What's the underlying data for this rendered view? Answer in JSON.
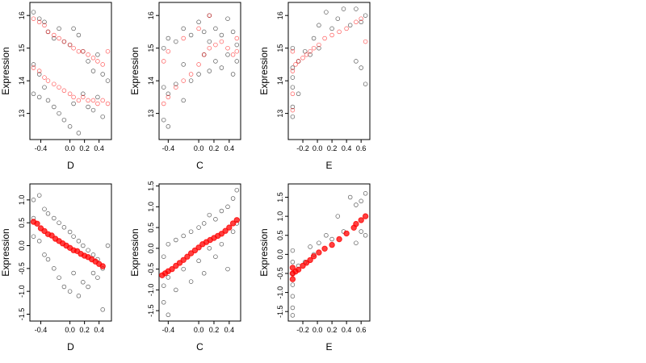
{
  "chart_data": [
    {
      "type": "scatter",
      "xlabel": "D",
      "ylabel": "Expression",
      "xlim": [
        -0.55,
        0.57
      ],
      "ylim": [
        12.2,
        16.4
      ],
      "xticks": [
        "-0.4",
        "0.0",
        "0.2",
        "0.4"
      ],
      "xtick_values": [
        -0.4,
        0.0,
        0.2,
        0.4
      ],
      "yticks": [
        "13",
        "14",
        "15",
        "16"
      ],
      "ytick_values": [
        13,
        14,
        15,
        16
      ],
      "grid": false,
      "series": [
        {
          "color": "#000000",
          "marker": "open-circle",
          "x": [
            -0.5,
            -0.5,
            -0.5,
            -0.42,
            -0.42,
            -0.42,
            -0.35,
            -0.35,
            -0.3,
            -0.3,
            -0.22,
            -0.22,
            -0.15,
            -0.15,
            -0.08,
            -0.08,
            0.0,
            0.0,
            0.05,
            0.05,
            0.12,
            0.12,
            0.18,
            0.18,
            0.25,
            0.25,
            0.32,
            0.32,
            0.38,
            0.38,
            0.45,
            0.45,
            0.52
          ],
          "y": [
            16.1,
            14.5,
            13.6,
            15.9,
            14.2,
            13.5,
            15.8,
            13.8,
            15.5,
            13.4,
            15.3,
            13.2,
            15.6,
            13.0,
            15.2,
            12.8,
            15.1,
            12.6,
            15.6,
            13.3,
            15.4,
            12.4,
            14.9,
            13.6,
            14.6,
            13.2,
            14.3,
            13.1,
            14.8,
            13.5,
            14.2,
            12.9,
            14.0
          ]
        },
        {
          "color": "#ff0000",
          "marker": "open-circle",
          "x": [
            -0.5,
            -0.5,
            -0.42,
            -0.42,
            -0.35,
            -0.35,
            -0.3,
            -0.3,
            -0.22,
            -0.22,
            -0.15,
            -0.15,
            -0.08,
            -0.08,
            0.0,
            0.0,
            0.05,
            0.05,
            0.12,
            0.12,
            0.18,
            0.18,
            0.25,
            0.25,
            0.32,
            0.32,
            0.38,
            0.38,
            0.45,
            0.45,
            0.52,
            0.52
          ],
          "y": [
            15.9,
            14.4,
            15.8,
            14.3,
            15.7,
            14.1,
            15.5,
            14.0,
            15.4,
            13.9,
            15.3,
            13.8,
            15.2,
            13.7,
            15.1,
            13.6,
            15.0,
            13.5,
            14.9,
            13.4,
            14.9,
            13.5,
            14.8,
            13.4,
            14.7,
            13.4,
            14.6,
            13.3,
            14.5,
            13.4,
            14.9,
            13.3
          ]
        }
      ]
    },
    {
      "type": "scatter",
      "xlabel": "C",
      "ylabel": "Expression",
      "xlim": [
        -0.52,
        0.55
      ],
      "ylim": [
        12.2,
        16.4
      ],
      "xticks": [
        "-0.4",
        "0.0",
        "0.2",
        "0.4"
      ],
      "xtick_values": [
        -0.4,
        0.0,
        0.2,
        0.4
      ],
      "yticks": [
        "13",
        "14",
        "15",
        "16"
      ],
      "ytick_values": [
        13,
        14,
        15,
        16
      ],
      "grid": false,
      "series": [
        {
          "color": "#000000",
          "marker": "open-circle",
          "x": [
            -0.46,
            -0.46,
            -0.46,
            -0.4,
            -0.4,
            -0.4,
            -0.3,
            -0.3,
            -0.2,
            -0.2,
            -0.2,
            -0.1,
            -0.1,
            0.0,
            0.0,
            0.07,
            0.07,
            0.14,
            0.14,
            0.14,
            0.22,
            0.22,
            0.3,
            0.3,
            0.38,
            0.38,
            0.45,
            0.45,
            0.5,
            0.5
          ],
          "y": [
            15.0,
            13.8,
            12.8,
            15.3,
            13.6,
            12.6,
            15.2,
            13.9,
            15.6,
            14.5,
            13.4,
            15.4,
            14.0,
            15.8,
            14.2,
            15.5,
            14.8,
            16.0,
            15.2,
            14.3,
            15.6,
            14.6,
            15.4,
            14.4,
            15.9,
            14.8,
            15.5,
            14.2,
            15.1,
            14.6
          ]
        },
        {
          "color": "#ff0000",
          "marker": "open-circle",
          "x": [
            -0.46,
            -0.46,
            -0.4,
            -0.4,
            -0.3,
            -0.2,
            -0.2,
            -0.1,
            0.0,
            0.0,
            0.07,
            0.14,
            0.14,
            0.22,
            0.3,
            0.38,
            0.45,
            0.5,
            0.5
          ],
          "y": [
            13.3,
            14.6,
            13.5,
            14.9,
            13.8,
            14.0,
            15.3,
            14.2,
            14.5,
            15.6,
            14.8,
            15.0,
            16.0,
            15.1,
            15.2,
            15.0,
            14.8,
            14.9,
            15.3
          ]
        }
      ]
    },
    {
      "type": "scatter",
      "xlabel": "E",
      "ylabel": "Expression",
      "xlim": [
        -0.4,
        0.72
      ],
      "ylim": [
        12.2,
        16.4
      ],
      "xticks": [
        "-0.2",
        "0.0",
        "0.2",
        "0.4",
        "0.6"
      ],
      "xtick_values": [
        -0.2,
        0.0,
        0.2,
        0.4,
        0.6
      ],
      "yticks": [
        "13",
        "14",
        "15",
        "16"
      ],
      "ytick_values": [
        13,
        14,
        15,
        16
      ],
      "grid": false,
      "series": [
        {
          "color": "#000000",
          "marker": "open-circle",
          "x": [
            -0.34,
            -0.34,
            -0.34,
            -0.34,
            -0.34,
            -0.34,
            -0.26,
            -0.26,
            -0.17,
            -0.1,
            -0.05,
            0.02,
            0.02,
            0.12,
            0.2,
            0.28,
            0.36,
            0.45,
            0.53,
            0.53,
            0.6,
            0.6,
            0.66,
            0.66
          ],
          "y": [
            15.0,
            14.4,
            13.8,
            13.2,
            12.9,
            14.1,
            14.6,
            13.6,
            14.9,
            14.8,
            15.3,
            15.7,
            15.0,
            16.1,
            15.6,
            15.9,
            16.2,
            15.7,
            16.2,
            14.6,
            15.8,
            14.4,
            16.0,
            13.9
          ]
        },
        {
          "color": "#ff0000",
          "marker": "open-circle",
          "x": [
            -0.34,
            -0.34,
            -0.34,
            -0.34,
            -0.3,
            -0.26,
            -0.2,
            -0.15,
            -0.1,
            -0.05,
            0.02,
            0.1,
            0.2,
            0.3,
            0.4,
            0.53,
            0.6,
            0.66
          ],
          "y": [
            14.9,
            14.3,
            13.6,
            13.1,
            14.5,
            14.6,
            14.7,
            14.8,
            14.9,
            15.0,
            15.1,
            15.3,
            15.4,
            15.5,
            15.6,
            15.8,
            15.9,
            15.2
          ]
        }
      ]
    },
    {
      "type": "scatter",
      "xlabel": "D",
      "ylabel": "Expression",
      "xlim": [
        -0.55,
        0.57
      ],
      "ylim": [
        -1.65,
        1.35
      ],
      "xticks": [
        "-0.4",
        "0.0",
        "0.2",
        "0.4"
      ],
      "xtick_values": [
        -0.4,
        0.0,
        0.2,
        0.4
      ],
      "yticks": [
        "-1.5",
        "-1.0",
        "-0.5",
        "0.0",
        "0.5",
        "1.0"
      ],
      "ytick_values": [
        -1.5,
        -1.0,
        -0.5,
        0.0,
        0.5,
        1.0
      ],
      "grid": false,
      "series": [
        {
          "color": "#000000",
          "marker": "open-circle",
          "x": [
            -0.5,
            -0.5,
            -0.5,
            -0.42,
            -0.42,
            -0.35,
            -0.35,
            -0.3,
            -0.3,
            -0.22,
            -0.22,
            -0.15,
            -0.15,
            -0.08,
            -0.08,
            0.0,
            0.0,
            0.05,
            0.05,
            0.12,
            0.12,
            0.18,
            0.18,
            0.25,
            0.25,
            0.32,
            0.32,
            0.38,
            0.38,
            0.45,
            0.45,
            0.52
          ],
          "y": [
            1.0,
            0.6,
            0.2,
            1.1,
            0.1,
            0.8,
            -0.2,
            0.7,
            -0.3,
            0.6,
            -0.5,
            0.5,
            -0.7,
            0.4,
            -0.9,
            0.3,
            -1.0,
            0.2,
            -0.6,
            0.1,
            -1.1,
            0.0,
            -0.8,
            -0.1,
            -0.9,
            -0.2,
            -0.6,
            -0.3,
            -0.7,
            -1.4,
            -0.5,
            0.0
          ]
        },
        {
          "color": "#ff0000",
          "marker": "filled-circle",
          "x": [
            -0.5,
            -0.45,
            -0.4,
            -0.35,
            -0.3,
            -0.25,
            -0.2,
            -0.15,
            -0.1,
            -0.05,
            0.0,
            0.05,
            0.1,
            0.15,
            0.2,
            0.25,
            0.3,
            0.35,
            0.4,
            0.45
          ],
          "y": [
            0.52,
            0.48,
            0.38,
            0.32,
            0.25,
            0.22,
            0.15,
            0.1,
            0.05,
            0.0,
            -0.05,
            -0.1,
            -0.12,
            -0.18,
            -0.22,
            -0.25,
            -0.3,
            -0.35,
            -0.4,
            -0.45
          ]
        }
      ]
    },
    {
      "type": "scatter",
      "xlabel": "C",
      "ylabel": "Expression",
      "xlim": [
        -0.52,
        0.55
      ],
      "ylim": [
        -1.75,
        1.55
      ],
      "xticks": [
        "-0.4",
        "0.0",
        "0.2",
        "0.4"
      ],
      "xtick_values": [
        -0.4,
        0.0,
        0.2,
        0.4
      ],
      "yticks": [
        "-1.5",
        "-1.0",
        "-0.5",
        "0.0",
        "0.5",
        "1.0",
        "1.5"
      ],
      "ytick_values": [
        -1.5,
        -1.0,
        -0.5,
        0.0,
        0.5,
        1.0,
        1.5
      ],
      "grid": false,
      "series": [
        {
          "color": "#000000",
          "marker": "open-circle",
          "x": [
            -0.46,
            -0.46,
            -0.46,
            -0.4,
            -0.4,
            -0.4,
            -0.3,
            -0.3,
            -0.2,
            -0.2,
            -0.1,
            -0.1,
            0.0,
            0.0,
            0.07,
            0.07,
            0.14,
            0.14,
            0.22,
            0.22,
            0.3,
            0.3,
            0.38,
            0.38,
            0.45,
            0.45,
            0.5,
            0.5
          ],
          "y": [
            -0.2,
            -0.9,
            -1.3,
            0.1,
            -0.7,
            -1.6,
            0.2,
            -1.0,
            0.3,
            -0.5,
            0.4,
            -0.8,
            0.5,
            -0.3,
            0.6,
            -0.6,
            0.8,
            0.0,
            0.7,
            -0.2,
            0.9,
            0.1,
            1.0,
            -0.5,
            1.2,
            0.4,
            1.4,
            0.6
          ]
        },
        {
          "color": "#ff0000",
          "marker": "filled-circle",
          "x": [
            -0.48,
            -0.44,
            -0.4,
            -0.35,
            -0.3,
            -0.25,
            -0.2,
            -0.15,
            -0.1,
            -0.05,
            0.0,
            0.05,
            0.1,
            0.15,
            0.2,
            0.25,
            0.3,
            0.35,
            0.4,
            0.45,
            0.5
          ],
          "y": [
            -0.65,
            -0.6,
            -0.55,
            -0.5,
            -0.42,
            -0.35,
            -0.28,
            -0.2,
            -0.12,
            -0.05,
            0.02,
            0.1,
            0.15,
            0.2,
            0.25,
            0.3,
            0.35,
            0.42,
            0.5,
            0.6,
            0.68
          ]
        }
      ]
    },
    {
      "type": "scatter",
      "xlabel": "E",
      "ylabel": "Expression",
      "xlim": [
        -0.4,
        0.72
      ],
      "ylim": [
        -1.75,
        1.85
      ],
      "xticks": [
        "-0.2",
        "0.0",
        "0.2",
        "0.4",
        "0.6"
      ],
      "xtick_values": [
        -0.2,
        0.0,
        0.2,
        0.4,
        0.6
      ],
      "yticks": [
        "-1.5",
        "-1.0",
        "-0.5",
        "0.0",
        "0.5",
        "1.0",
        "1.5"
      ],
      "ytick_values": [
        -1.5,
        -1.0,
        -0.5,
        0.0,
        0.5,
        1.0,
        1.5
      ],
      "grid": false,
      "series": [
        {
          "color": "#000000",
          "marker": "open-circle",
          "x": [
            -0.34,
            -0.34,
            -0.34,
            -0.34,
            -0.34,
            -0.34,
            -0.34,
            -0.26,
            -0.17,
            -0.1,
            -0.05,
            0.02,
            0.12,
            0.2,
            0.28,
            0.36,
            0.45,
            0.53,
            0.53,
            0.6,
            0.6,
            0.66,
            0.66
          ],
          "y": [
            0.1,
            -0.2,
            -0.5,
            -0.8,
            -1.1,
            -1.4,
            -1.6,
            -0.3,
            -0.2,
            0.2,
            0.0,
            0.3,
            0.5,
            0.4,
            1.0,
            0.6,
            1.5,
            1.3,
            0.3,
            1.4,
            0.6,
            1.6,
            0.5
          ]
        },
        {
          "color": "#ff0000",
          "marker": "filled-circle",
          "x": [
            -0.34,
            -0.34,
            -0.34,
            -0.3,
            -0.26,
            -0.2,
            -0.15,
            -0.1,
            -0.05,
            0.02,
            0.1,
            0.2,
            0.3,
            0.4,
            0.5,
            0.53,
            0.6,
            0.66
          ],
          "y": [
            -0.5,
            -0.65,
            -0.35,
            -0.45,
            -0.4,
            -0.3,
            -0.22,
            -0.15,
            -0.05,
            0.05,
            0.15,
            0.25,
            0.4,
            0.55,
            0.7,
            0.8,
            0.9,
            1.0
          ]
        }
      ]
    }
  ]
}
